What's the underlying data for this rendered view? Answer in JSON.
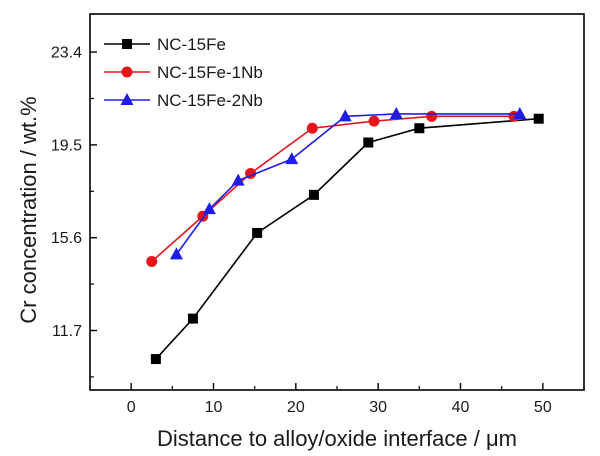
{
  "chart_data": {
    "type": "line",
    "xlabel": "Distance to alloy/oxide interface / μm",
    "ylabel": "Cr concentration / wt.%",
    "xlim": [
      -5,
      55
    ],
    "ylim": [
      9.2,
      25.0
    ],
    "x_ticks": [
      0,
      10,
      20,
      30,
      40,
      50
    ],
    "y_ticks": [
      11.7,
      15.6,
      19.5,
      23.4
    ],
    "legend_position": "top-left",
    "series": [
      {
        "name": "NC-15Fe",
        "color": "#000000",
        "marker": "square",
        "x": [
          3.0,
          7.5,
          15.3,
          22.2,
          28.8,
          35.0,
          49.5
        ],
        "y": [
          10.5,
          12.2,
          15.8,
          17.4,
          19.6,
          20.2,
          20.6
        ]
      },
      {
        "name": "NC-15Fe-1Nb",
        "color": "#e8141c",
        "marker": "circle",
        "x": [
          2.5,
          8.7,
          14.5,
          22.0,
          29.5,
          36.5,
          46.5
        ],
        "y": [
          14.6,
          16.5,
          18.3,
          20.2,
          20.5,
          20.7,
          20.7
        ]
      },
      {
        "name": "NC-15Fe-2Nb",
        "color": "#1e1ee6",
        "marker": "triangle",
        "x": [
          5.5,
          9.5,
          13.0,
          19.5,
          26.0,
          32.2,
          47.2
        ],
        "y": [
          14.9,
          16.8,
          18.0,
          18.9,
          20.7,
          20.8,
          20.8
        ]
      }
    ]
  }
}
